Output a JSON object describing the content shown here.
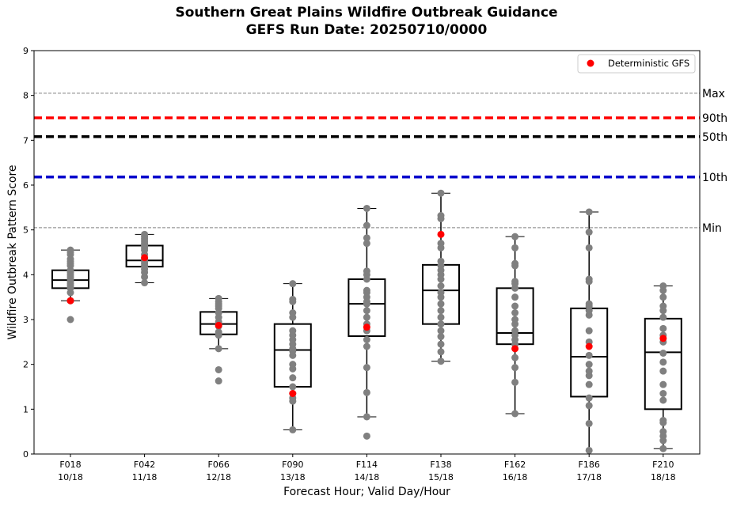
{
  "chart_data": {
    "type": "boxplot",
    "title": "Southern Great Plains Wildfire Outbreak Guidance",
    "subtitle": "GEFS Run Date: 20250710/0000",
    "xlabel": "Forecast Hour; Valid Day/Hour",
    "ylabel": "Wildfire Outbreak Pattern Score",
    "ylim": [
      0,
      9
    ],
    "yticks": [
      "0",
      "1",
      "2",
      "3",
      "4",
      "5",
      "6",
      "7",
      "8",
      "9"
    ],
    "grid": false,
    "legend": {
      "placement": "top-right",
      "entries": [
        {
          "label": "Deterministic GFS",
          "color": "#ff0000",
          "marker": "circle"
        }
      ]
    },
    "categories": [
      {
        "hour": "F018",
        "valid": "10/18"
      },
      {
        "hour": "F042",
        "valid": "11/18"
      },
      {
        "hour": "F066",
        "valid": "12/18"
      },
      {
        "hour": "F090",
        "valid": "13/18"
      },
      {
        "hour": "F114",
        "valid": "14/18"
      },
      {
        "hour": "F138",
        "valid": "15/18"
      },
      {
        "hour": "F162",
        "valid": "16/18"
      },
      {
        "hour": "F186",
        "valid": "17/18"
      },
      {
        "hour": "F210",
        "valid": "18/18"
      }
    ],
    "reference_lines": [
      {
        "label": "Max",
        "value": 8.05,
        "color": "#808080",
        "style": "dashed-thin"
      },
      {
        "label": "90th",
        "value": 7.5,
        "color": "#ff0000",
        "style": "dashed-thick"
      },
      {
        "label": "50th",
        "value": 7.08,
        "color": "#000000",
        "style": "dashed-thick"
      },
      {
        "label": "10th",
        "value": 6.18,
        "color": "#0000cc",
        "style": "dashed-thick"
      },
      {
        "label": "Min",
        "value": 5.05,
        "color": "#808080",
        "style": "dashed-thin"
      }
    ],
    "boxes": [
      {
        "whisker_low": 3.42,
        "q1": 3.7,
        "median": 3.88,
        "q3": 4.1,
        "whisker_high": 4.55
      },
      {
        "whisker_low": 3.82,
        "q1": 4.18,
        "median": 4.32,
        "q3": 4.65,
        "whisker_high": 4.9
      },
      {
        "whisker_low": 2.35,
        "q1": 2.67,
        "median": 2.9,
        "q3": 3.17,
        "whisker_high": 3.47
      },
      {
        "whisker_low": 0.54,
        "q1": 1.5,
        "median": 2.32,
        "q3": 2.9,
        "whisker_high": 3.8
      },
      {
        "whisker_low": 0.83,
        "q1": 2.63,
        "median": 3.35,
        "q3": 3.9,
        "whisker_high": 5.48
      },
      {
        "whisker_low": 2.07,
        "q1": 2.9,
        "median": 3.65,
        "q3": 4.22,
        "whisker_high": 5.82
      },
      {
        "whisker_low": 0.9,
        "q1": 2.45,
        "median": 2.7,
        "q3": 3.7,
        "whisker_high": 4.85
      },
      {
        "whisker_low": 0.0,
        "q1": 1.28,
        "median": 2.17,
        "q3": 3.25,
        "whisker_high": 5.4
      },
      {
        "whisker_low": 0.12,
        "q1": 1.0,
        "median": 2.27,
        "q3": 3.02,
        "whisker_high": 3.75
      }
    ],
    "ensemble_members": [
      [
        3.0,
        3.42,
        3.6,
        3.7,
        3.75,
        3.8,
        3.85,
        3.9,
        3.95,
        4.0,
        4.05,
        4.1,
        4.2,
        4.25,
        4.3,
        4.35,
        4.45,
        4.5,
        4.55
      ],
      [
        3.82,
        3.95,
        4.05,
        4.12,
        4.2,
        4.25,
        4.3,
        4.35,
        4.45,
        4.55,
        4.6,
        4.65,
        4.7,
        4.75,
        4.8,
        4.85,
        4.9
      ],
      [
        1.63,
        1.88,
        2.35,
        2.65,
        2.72,
        2.85,
        2.9,
        2.95,
        3.05,
        3.15,
        3.25,
        3.3,
        3.35,
        3.4,
        3.47
      ],
      [
        0.54,
        1.18,
        1.25,
        1.35,
        1.5,
        1.7,
        1.9,
        2.0,
        2.2,
        2.3,
        2.35,
        2.45,
        2.55,
        2.65,
        2.75,
        3.05,
        3.15,
        3.4,
        3.45,
        3.8
      ],
      [
        0.4,
        0.83,
        1.37,
        1.93,
        2.4,
        2.55,
        2.75,
        2.9,
        3.05,
        3.2,
        3.35,
        3.4,
        3.5,
        3.6,
        3.65,
        3.9,
        4.0,
        4.08,
        4.7,
        4.82,
        5.1,
        5.48
      ],
      [
        2.07,
        2.28,
        2.45,
        2.62,
        2.75,
        2.9,
        3.05,
        3.2,
        3.35,
        3.5,
        3.6,
        3.75,
        3.9,
        4.0,
        4.1,
        4.2,
        4.3,
        4.6,
        4.7,
        5.25,
        5.32,
        5.82
      ],
      [
        0.9,
        1.6,
        1.93,
        2.15,
        2.45,
        2.55,
        2.65,
        2.75,
        2.9,
        3.0,
        3.15,
        3.3,
        3.5,
        3.7,
        3.8,
        3.85,
        4.2,
        4.25,
        4.6,
        4.85
      ],
      [
        0.08,
        0.68,
        1.08,
        1.25,
        1.55,
        1.75,
        1.85,
        2.0,
        2.2,
        2.5,
        2.75,
        3.1,
        3.2,
        3.3,
        3.35,
        3.85,
        3.9,
        4.6,
        4.95,
        5.4
      ],
      [
        0.12,
        0.3,
        0.4,
        0.5,
        0.7,
        0.75,
        1.2,
        1.35,
        1.55,
        1.85,
        2.05,
        2.25,
        2.5,
        2.65,
        2.8,
        3.05,
        3.2,
        3.3,
        3.5,
        3.65,
        3.75
      ]
    ],
    "deterministic_gfs": [
      3.42,
      4.38,
      2.87,
      1.35,
      2.83,
      4.9,
      2.35,
      2.4,
      2.58
    ],
    "colors": {
      "members": "#808080",
      "deterministic": "#ff0000",
      "box": "#000000"
    }
  }
}
